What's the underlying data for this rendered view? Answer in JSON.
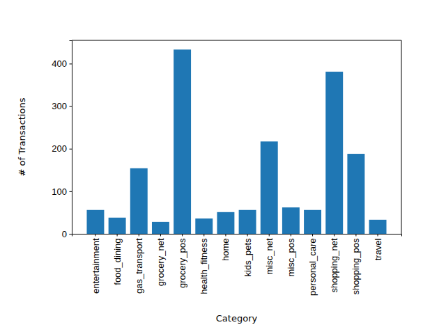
{
  "chart_data": {
    "type": "bar",
    "x_label": "Category",
    "y_label": "# of Transactions",
    "categories": [
      "entertainment",
      "food_dining",
      "gas_transport",
      "grocery_net",
      "grocery_pos",
      "health_fitness",
      "home",
      "kids_pets",
      "misc_net",
      "misc_pos",
      "personal_care",
      "shopping_net",
      "shopping_pos",
      "travel"
    ],
    "values": [
      56,
      38,
      154,
      28,
      433,
      36,
      51,
      56,
      217,
      62,
      56,
      381,
      188,
      33
    ],
    "color": "#1f77b4",
    "ylim": [
      0,
      454.65
    ],
    "yticks": [
      0,
      100,
      200,
      300,
      400
    ],
    "grid": false
  }
}
